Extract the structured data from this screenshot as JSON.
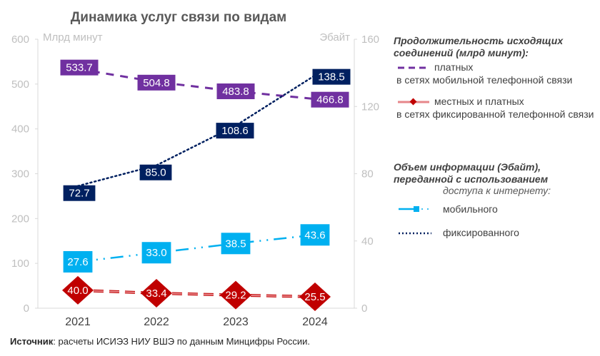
{
  "chart_data": {
    "type": "line",
    "title": "Динамика услуг связи по видам",
    "categories": [
      "2021",
      "2022",
      "2023",
      "2024"
    ],
    "left_axis": {
      "label": "Млрд минут",
      "ylim": [
        0,
        600
      ],
      "ticks": [
        "0",
        "100",
        "200",
        "300",
        "400",
        "500",
        "600"
      ]
    },
    "right_axis": {
      "label": "Эбайт",
      "ylim": [
        0,
        160
      ],
      "ticks": [
        "0",
        "40",
        "80",
        "120",
        "160"
      ]
    },
    "grid": false,
    "legend_position": "right",
    "series": [
      {
        "id": "mobile_minutes",
        "name": "платных в сетях мобильной телефонной связи",
        "axis": "left",
        "values": [
          533.7,
          504.8,
          483.8,
          466.8
        ],
        "labels": [
          "533.7",
          "504.8",
          "483.8",
          "466.8"
        ],
        "color": "#7030A0",
        "style": "dashed",
        "marker": "none"
      },
      {
        "id": "fixed_minutes",
        "name": "местных и платных в сетях фиксированной телефонной связи",
        "axis": "left",
        "values": [
          40.0,
          33.4,
          29.2,
          25.5
        ],
        "labels": [
          "40.0",
          "33.4",
          "29.2",
          "25.5"
        ],
        "color": "#C00000",
        "line_color": "#E6868A",
        "style": "dashed",
        "marker": "diamond"
      },
      {
        "id": "mobile_internet",
        "name": "мобильного",
        "axis": "right",
        "values": [
          27.6,
          33.0,
          38.5,
          43.6
        ],
        "labels": [
          "27.6",
          "33.0",
          "38.5",
          "43.6"
        ],
        "color": "#00B0F0",
        "style": "dash-dot-dot",
        "marker": "square"
      },
      {
        "id": "fixed_internet",
        "name": "фиксированного",
        "axis": "right",
        "values": [
          72.7,
          85.0,
          108.6,
          138.5
        ],
        "labels": [
          "72.7",
          "85.0",
          "108.6",
          "138.5"
        ],
        "color": "#002060",
        "style": "dotted",
        "marker": "none"
      }
    ],
    "legend": {
      "group1_title": [
        "Продолжительность исходящих",
        "соединений (млрд минут):"
      ],
      "item1": [
        "платных",
        "в сетях мобильной телефонной связи"
      ],
      "item2": [
        "местных и платных",
        "в сетях фиксированной телефонной связи"
      ],
      "group2_title": [
        "Объем информации (Эбайт),",
        "переданной с использованием"
      ],
      "group2_sub": "доступа к интернету:",
      "item3": "мобильного",
      "item4": "фиксированного"
    }
  },
  "source": {
    "label": "Источник",
    "text": ": расчеты ИСИЭЗ НИУ ВШЭ по данным Минцифры России."
  }
}
